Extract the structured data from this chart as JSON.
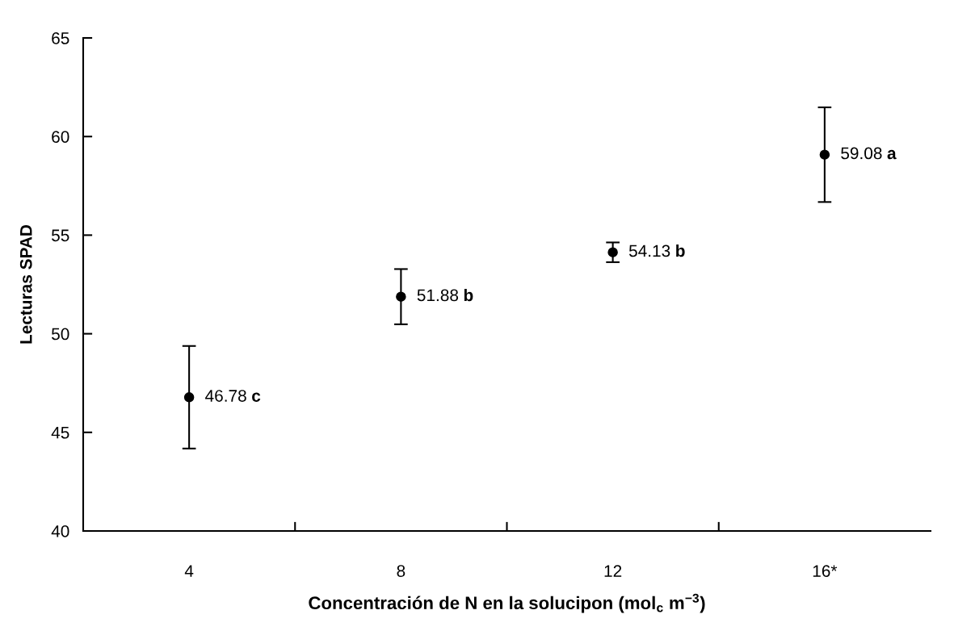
{
  "chart_data": {
    "type": "scatter",
    "xlabel": "Concentración de N en la solucipon (mol$_{c}$ m$^{−3}$)",
    "ylabel": "Lecturas SPAD",
    "categories": [
      "4",
      "8",
      "12",
      "16*"
    ],
    "values": [
      46.78,
      51.88,
      54.13,
      59.08
    ],
    "errors": [
      2.6,
      1.4,
      0.5,
      2.4
    ],
    "value_labels": [
      "46.78",
      "51.88",
      "54.13",
      "59.08"
    ],
    "annotations": [
      "c",
      "b",
      "b",
      "a"
    ],
    "color": "#000000",
    "marker": "circle",
    "ylim": [
      40,
      65
    ],
    "yticks": [
      40,
      45,
      50,
      55,
      60,
      65
    ],
    "grid": false,
    "legend": false
  }
}
